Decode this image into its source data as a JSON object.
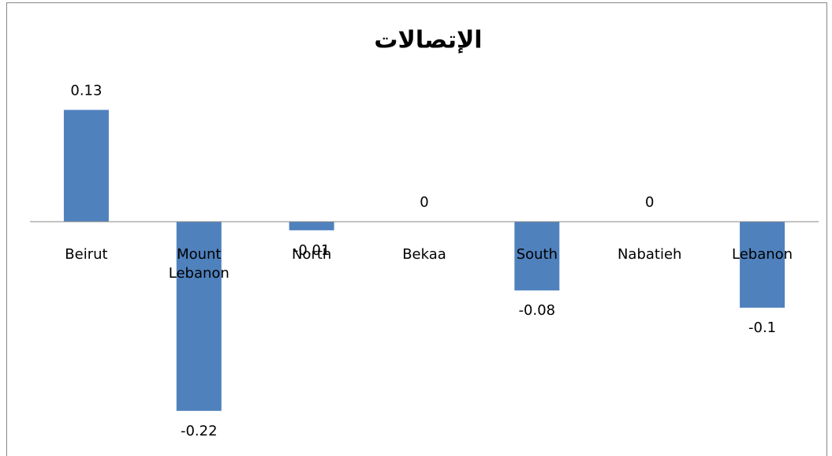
{
  "chart_data": {
    "type": "bar",
    "title": "الإتصالات",
    "categories": [
      "Beirut",
      "Mount Lebanon",
      "North",
      "Bekaa",
      "South",
      "Nabatieh",
      "Lebanon"
    ],
    "values": [
      0.13,
      -0.22,
      -0.01,
      0,
      -0.08,
      0,
      -0.1
    ],
    "color": "#4f81bd",
    "ylim": [
      -0.25,
      0.15
    ],
    "grid": false
  }
}
